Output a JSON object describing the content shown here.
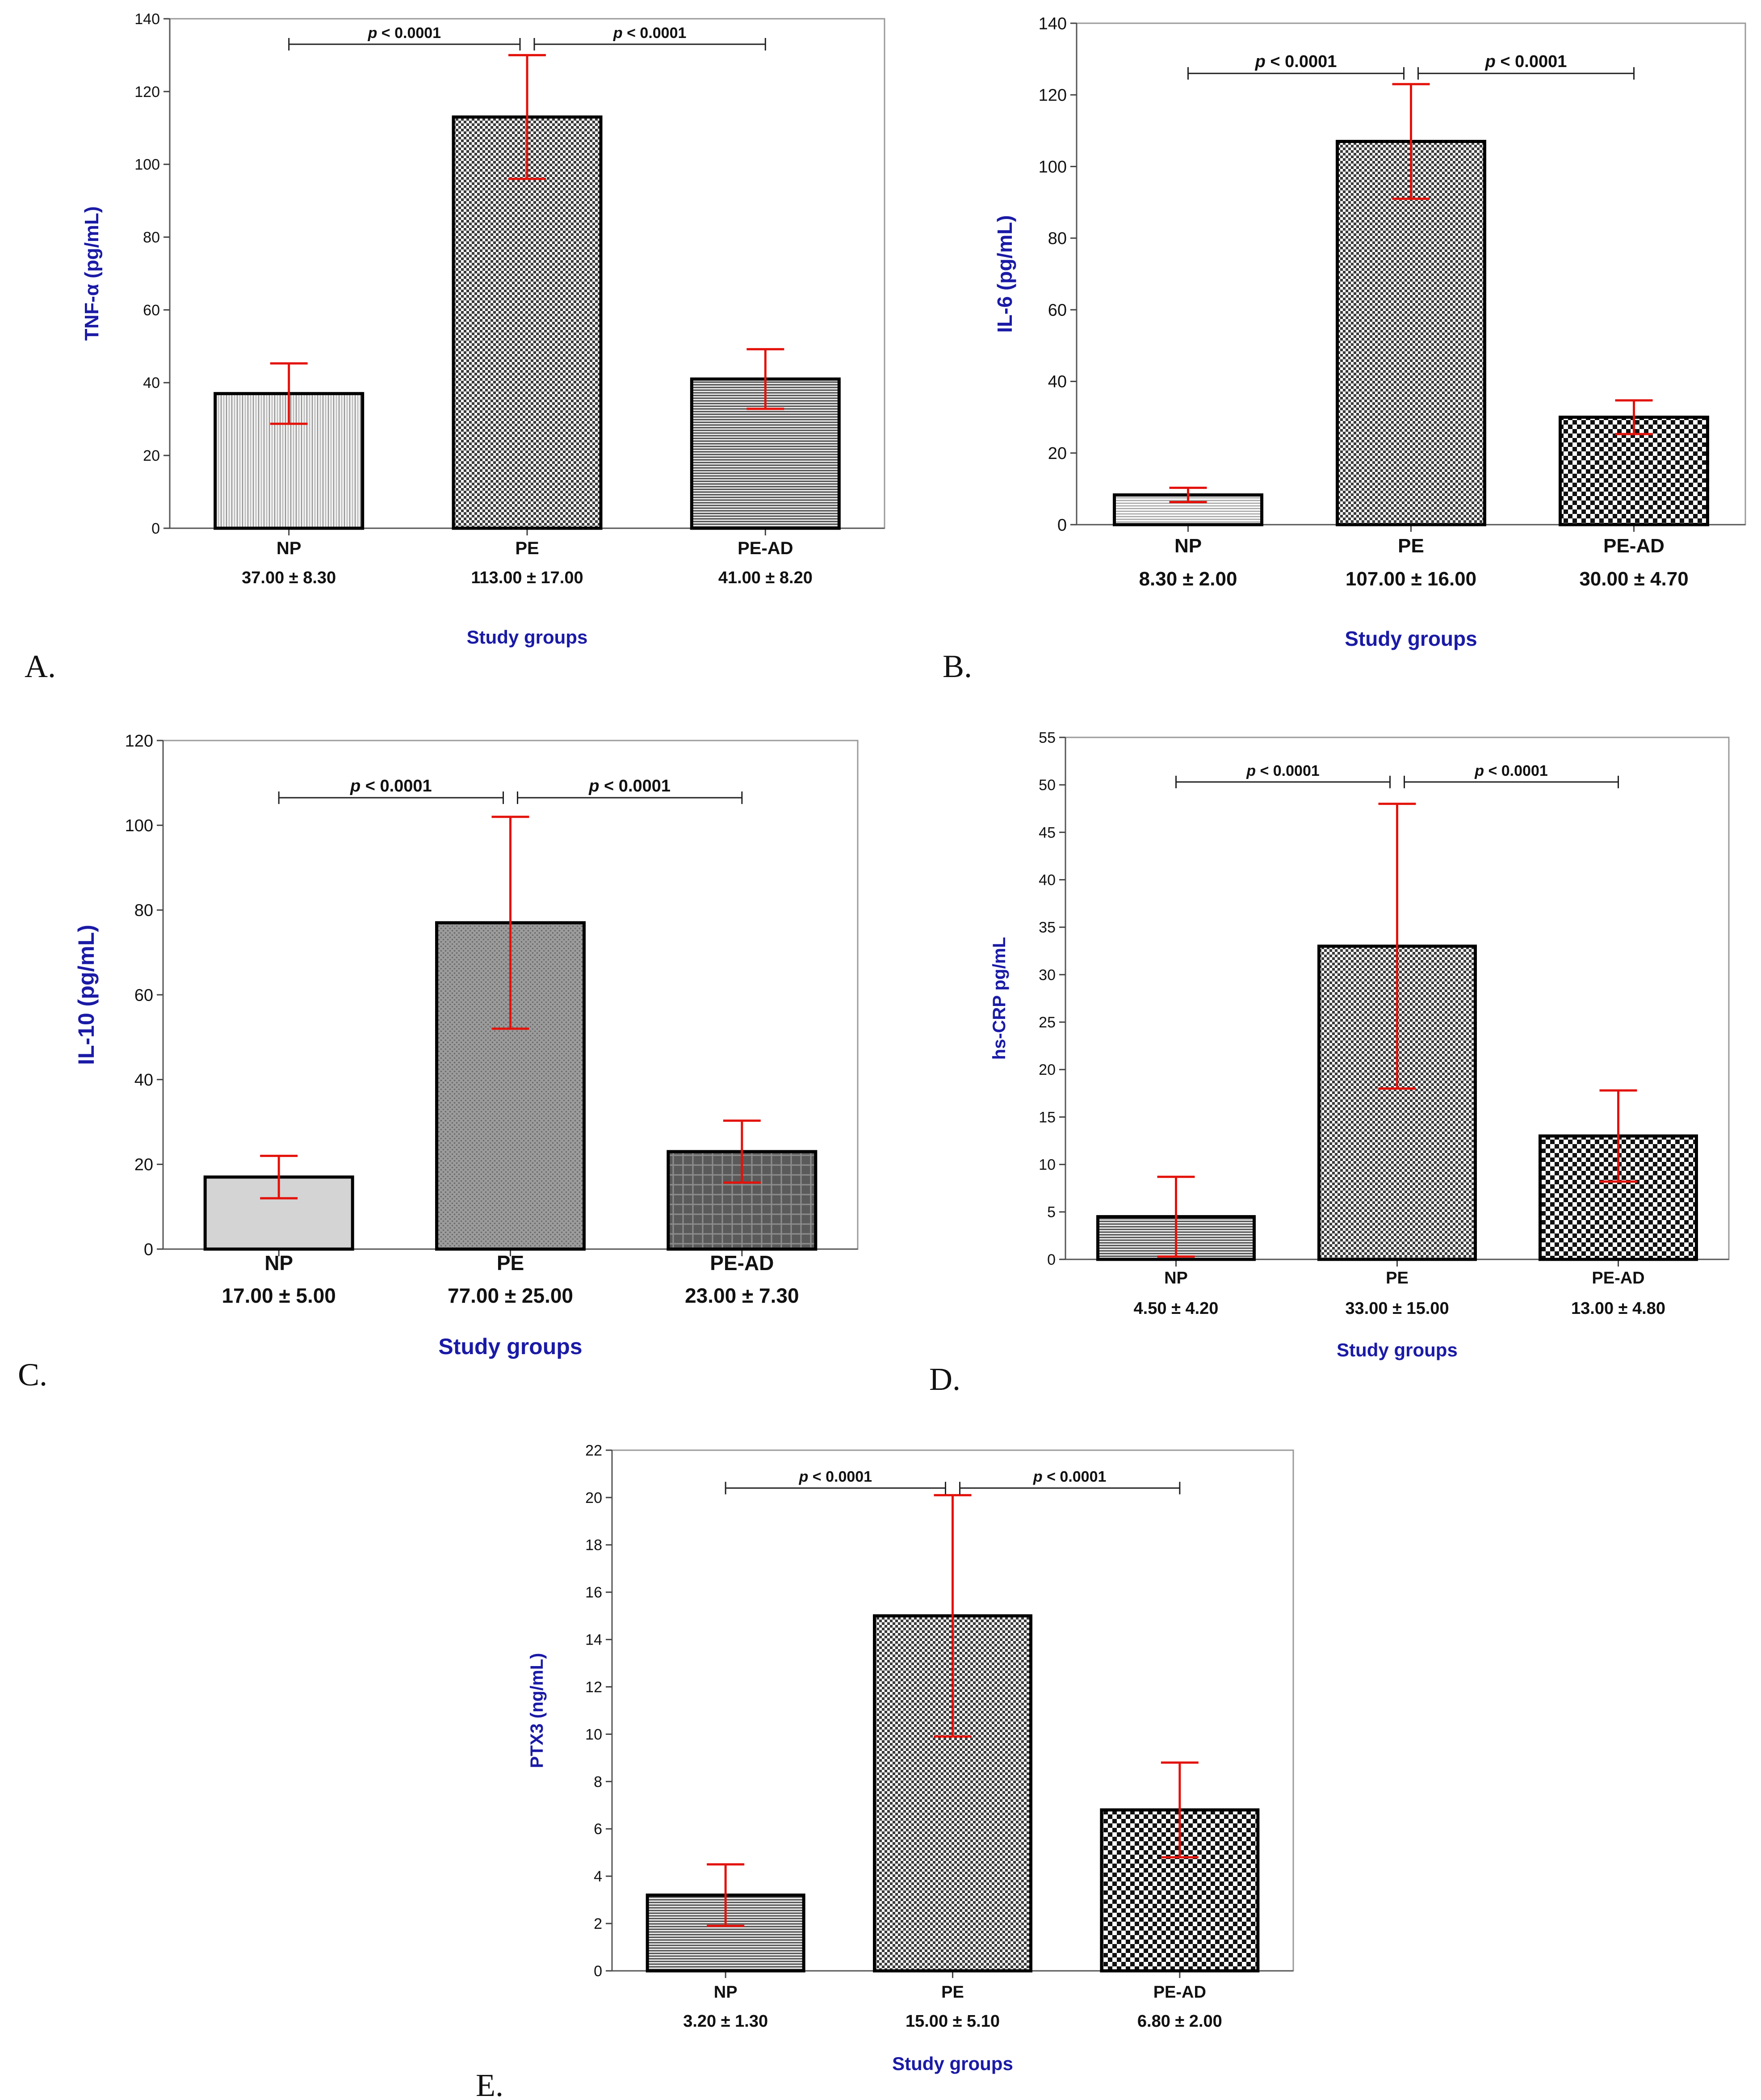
{
  "figure": {
    "panel_labels": [
      "A.",
      "B.",
      "C.",
      "D.",
      "E."
    ]
  },
  "colors": {
    "axis_label": "#1a1aa6",
    "error_bar": "#e3120b",
    "bar_stroke": "#000000",
    "text": "#111111"
  },
  "chart_data": [
    {
      "id": "A",
      "type": "bar",
      "title": "",
      "ylabel": "TNF-α (pg/mL)",
      "xlabel": "Study groups",
      "ylim": [
        0,
        140
      ],
      "yticks": [
        0,
        20,
        40,
        60,
        80,
        100,
        120,
        140
      ],
      "categories": [
        "NP",
        "PE",
        "PE-AD"
      ],
      "values": [
        37,
        113,
        41
      ],
      "errors": [
        8.3,
        17,
        8.2
      ],
      "value_labels": [
        "37.00 ±  8.30",
        "113.00 ±  17.00",
        "41.00 ±  8.20"
      ],
      "patterns": [
        "vlines",
        "checker-fine",
        "hlines"
      ],
      "comparisons": [
        {
          "from": 0,
          "to": 1,
          "label": "p < 0.0001",
          "y": 133
        },
        {
          "from": 1,
          "to": 2,
          "label": "p < 0.0001",
          "y": 133
        }
      ]
    },
    {
      "id": "B",
      "type": "bar",
      "title": "",
      "ylabel": "IL-6 (pg/mL)",
      "xlabel": "Study groups",
      "ylim": [
        0,
        140
      ],
      "yticks": [
        0,
        20,
        40,
        60,
        80,
        100,
        120,
        140
      ],
      "categories": [
        "NP",
        "PE",
        "PE-AD"
      ],
      "values": [
        8.3,
        107,
        30
      ],
      "errors": [
        2,
        16,
        4.7
      ],
      "value_labels": [
        "8.30 ±  2.00",
        "107.00 ±  16.00",
        "30.00 ±  4.70"
      ],
      "patterns": [
        "hlines-light",
        "checker-fine",
        "checker-coarse"
      ],
      "comparisons": [
        {
          "from": 0,
          "to": 1,
          "label": "p < 0.0001",
          "y": 126
        },
        {
          "from": 1,
          "to": 2,
          "label": "p < 0.0001",
          "y": 126
        }
      ]
    },
    {
      "id": "C",
      "type": "bar",
      "title": "",
      "ylabel": "IL-10 (pg/mL)",
      "xlabel": "Study groups",
      "ylim": [
        0,
        120
      ],
      "yticks": [
        0,
        20,
        40,
        60,
        80,
        100,
        120
      ],
      "categories": [
        "NP",
        "PE",
        "PE-AD"
      ],
      "values": [
        17,
        77,
        23
      ],
      "errors": [
        5,
        25,
        7.3
      ],
      "value_labels": [
        "17.00 ±  5.00",
        "77.00 ±  25.00",
        "23.00 ±  7.30"
      ],
      "patterns": [
        "solid-light",
        "dots-gray",
        "grid-dark"
      ],
      "comparisons": [
        {
          "from": 0,
          "to": 1,
          "label": "p < 0.0001",
          "y": 106.5
        },
        {
          "from": 1,
          "to": 2,
          "label": "p < 0.0001",
          "y": 106.5
        }
      ]
    },
    {
      "id": "D",
      "type": "bar",
      "title": "",
      "ylabel": "hs-CRP pg/mL",
      "xlabel": "Study groups",
      "ylim": [
        0,
        55
      ],
      "yticks": [
        0,
        5,
        10,
        15,
        20,
        25,
        30,
        35,
        40,
        45,
        50,
        55
      ],
      "categories": [
        "NP",
        "PE",
        "PE-AD"
      ],
      "values": [
        4.5,
        33,
        13
      ],
      "errors": [
        4.2,
        15,
        4.8
      ],
      "value_labels": [
        "4.50 ± 4.20",
        "33.00 ± 15.00",
        "13.00 ± 4.80"
      ],
      "patterns": [
        "hlines",
        "checker-fine",
        "checker-coarse"
      ],
      "comparisons": [
        {
          "from": 0,
          "to": 1,
          "label": "p < 0.0001",
          "y": 50.3
        },
        {
          "from": 1,
          "to": 2,
          "label": "p < 0.0001",
          "y": 50.3
        }
      ]
    },
    {
      "id": "E",
      "type": "bar",
      "title": "",
      "ylabel": "PTX3 (ng/mL)",
      "xlabel": "Study groups",
      "ylim": [
        0,
        22
      ],
      "yticks": [
        0,
        2,
        4,
        6,
        8,
        10,
        12,
        14,
        16,
        18,
        20,
        22
      ],
      "categories": [
        "NP",
        "PE",
        "PE-AD"
      ],
      "values": [
        3.2,
        15,
        6.8
      ],
      "errors": [
        1.3,
        5.1,
        2
      ],
      "value_labels": [
        "3.20 ± 1.30",
        "15.00 ± 5.10",
        "6.80 ± 2.00"
      ],
      "patterns": [
        "hlines",
        "checker-fine",
        "checker-coarse"
      ],
      "comparisons": [
        {
          "from": 0,
          "to": 1,
          "label": "p < 0.0001",
          "y": 20.4
        },
        {
          "from": 1,
          "to": 2,
          "label": "p < 0.0001",
          "y": 20.4
        }
      ]
    }
  ]
}
